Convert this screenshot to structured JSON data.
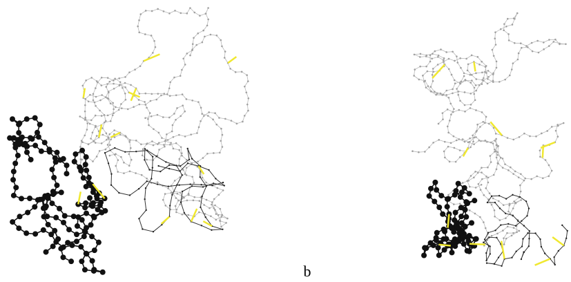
{
  "figure": {
    "label": "b"
  }
}
